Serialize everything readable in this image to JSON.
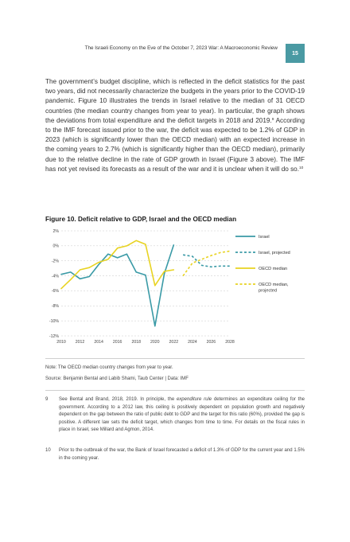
{
  "header": {
    "running_title": "The Israeli Economy on the Eve of the October 7, 2023 War: A Macroeconomic Review",
    "page_number": "15"
  },
  "body": {
    "paragraph_before_sup": "The government’s budget discipline, which is reflected in the deficit statistics for the past two years, did not necessarily characterize the budgets in the years prior to the COVID-19 pandemic. Figure 10 illustrates the trends in Israel relative to the median of 31 OECD countries (the median country changes from year to year). In particular, the graph shows the deviations from total expenditure and the deficit targets in 2018 and 2019.",
    "sup_9": "9",
    "paragraph_middle": " According to the IMF forecast issued prior to the war, the deficit was expected to be 1.2% of GDP in 2023 (which is significantly lower than the OECD median) with an expected increase in the coming years to 2.7% (which is significantly higher than the OECD median), primarily due to the relative decline in the rate of GDP growth in Israel (Figure 3 above). The IMF has not yet revised its forecasts as a result of the war and it is unclear when it will do so.",
    "sup_10": "10"
  },
  "figure": {
    "title": "Figure 10. Deficit relative to GDP, Israel and the OECD median",
    "note": "Note: The OECD median country changes from year to year.",
    "source": "Source: Benjamin Bental and Labib Shami, Taub Center | Data: IMF"
  },
  "chart_data": {
    "type": "line",
    "title": "Deficit relative to GDP, Israel and the OECD median",
    "xlabel": "",
    "ylabel": "",
    "xlim": [
      2010,
      2028
    ],
    "ylim": [
      -12,
      2
    ],
    "x_ticks": [
      2010,
      2012,
      2014,
      2016,
      2018,
      2020,
      2022,
      2024,
      2026,
      2028
    ],
    "x_tick_labels": [
      "2010",
      "2012",
      "2014",
      "2016",
      "2018",
      "2020",
      "2022",
      "2024",
      "2026",
      "2028"
    ],
    "y_ticks": [
      2,
      0,
      -2,
      -4,
      -6,
      -8,
      -10,
      -12
    ],
    "y_tick_labels": [
      "2%",
      "0%",
      "-2%",
      "-4%",
      "-6%",
      "-8%",
      "-10%",
      "-12%"
    ],
    "grid": "horizontal dashed",
    "legend_position": "right",
    "series": [
      {
        "name": "Israel",
        "color": "#3a9aa6",
        "style": "solid",
        "x": [
          2010,
          2011,
          2012,
          2013,
          2014,
          2015,
          2016,
          2017,
          2018,
          2019,
          2020,
          2021,
          2022
        ],
        "values": [
          -3.8,
          -3.5,
          -4.4,
          -4.1,
          -2.5,
          -1.1,
          -1.6,
          -1.1,
          -3.5,
          -3.9,
          -10.7,
          -3.7,
          0.1
        ]
      },
      {
        "name": "Israel, projected",
        "color": "#3a9aa6",
        "style": "dashed",
        "x": [
          2023,
          2024,
          2025,
          2026,
          2027,
          2028
        ],
        "values": [
          -1.2,
          -1.4,
          -2.6,
          -2.8,
          -2.7,
          -2.7
        ]
      },
      {
        "name": "OECD median",
        "color": "#e8d321",
        "style": "solid",
        "x": [
          2010,
          2011,
          2012,
          2013,
          2014,
          2015,
          2016,
          2017,
          2018,
          2019,
          2020,
          2021,
          2022
        ],
        "values": [
          -5.7,
          -4.5,
          -3.2,
          -2.9,
          -2.2,
          -1.8,
          -0.3,
          0.0,
          0.7,
          0.2,
          -5.3,
          -3.4,
          -3.2
        ]
      },
      {
        "name": "OECD median, projected",
        "color": "#e8d321",
        "style": "dashed",
        "x": [
          2023,
          2024,
          2025,
          2026,
          2027,
          2028
        ],
        "values": [
          -4.0,
          -2.3,
          -1.8,
          -1.3,
          -0.9,
          -0.7
        ]
      }
    ]
  },
  "footnotes": [
    {
      "number": "9",
      "text_before_em": "See Bental and Brand, 2018, 2019. In principle, the ",
      "em": "expenditure rule",
      "text_after_em": " determines an expenditure ceiling for the government. According to a 2012 law, this ceiling is positively dependent on population growth and negatively dependent on the gap between the ratio of public debt to GDP and the target for this ratio (60%), provided the gap is positive. A different law sets the deficit target, which changes from time to time. For details on the fiscal rules in place in Israel, see Millard and Agmon, 2014."
    },
    {
      "number": "10",
      "text": "Prior to the outbreak of the war, the Bank of Israel forecasted a deficit of 1.3% of GDP for the current year and 1.5% in the coming year."
    }
  ]
}
